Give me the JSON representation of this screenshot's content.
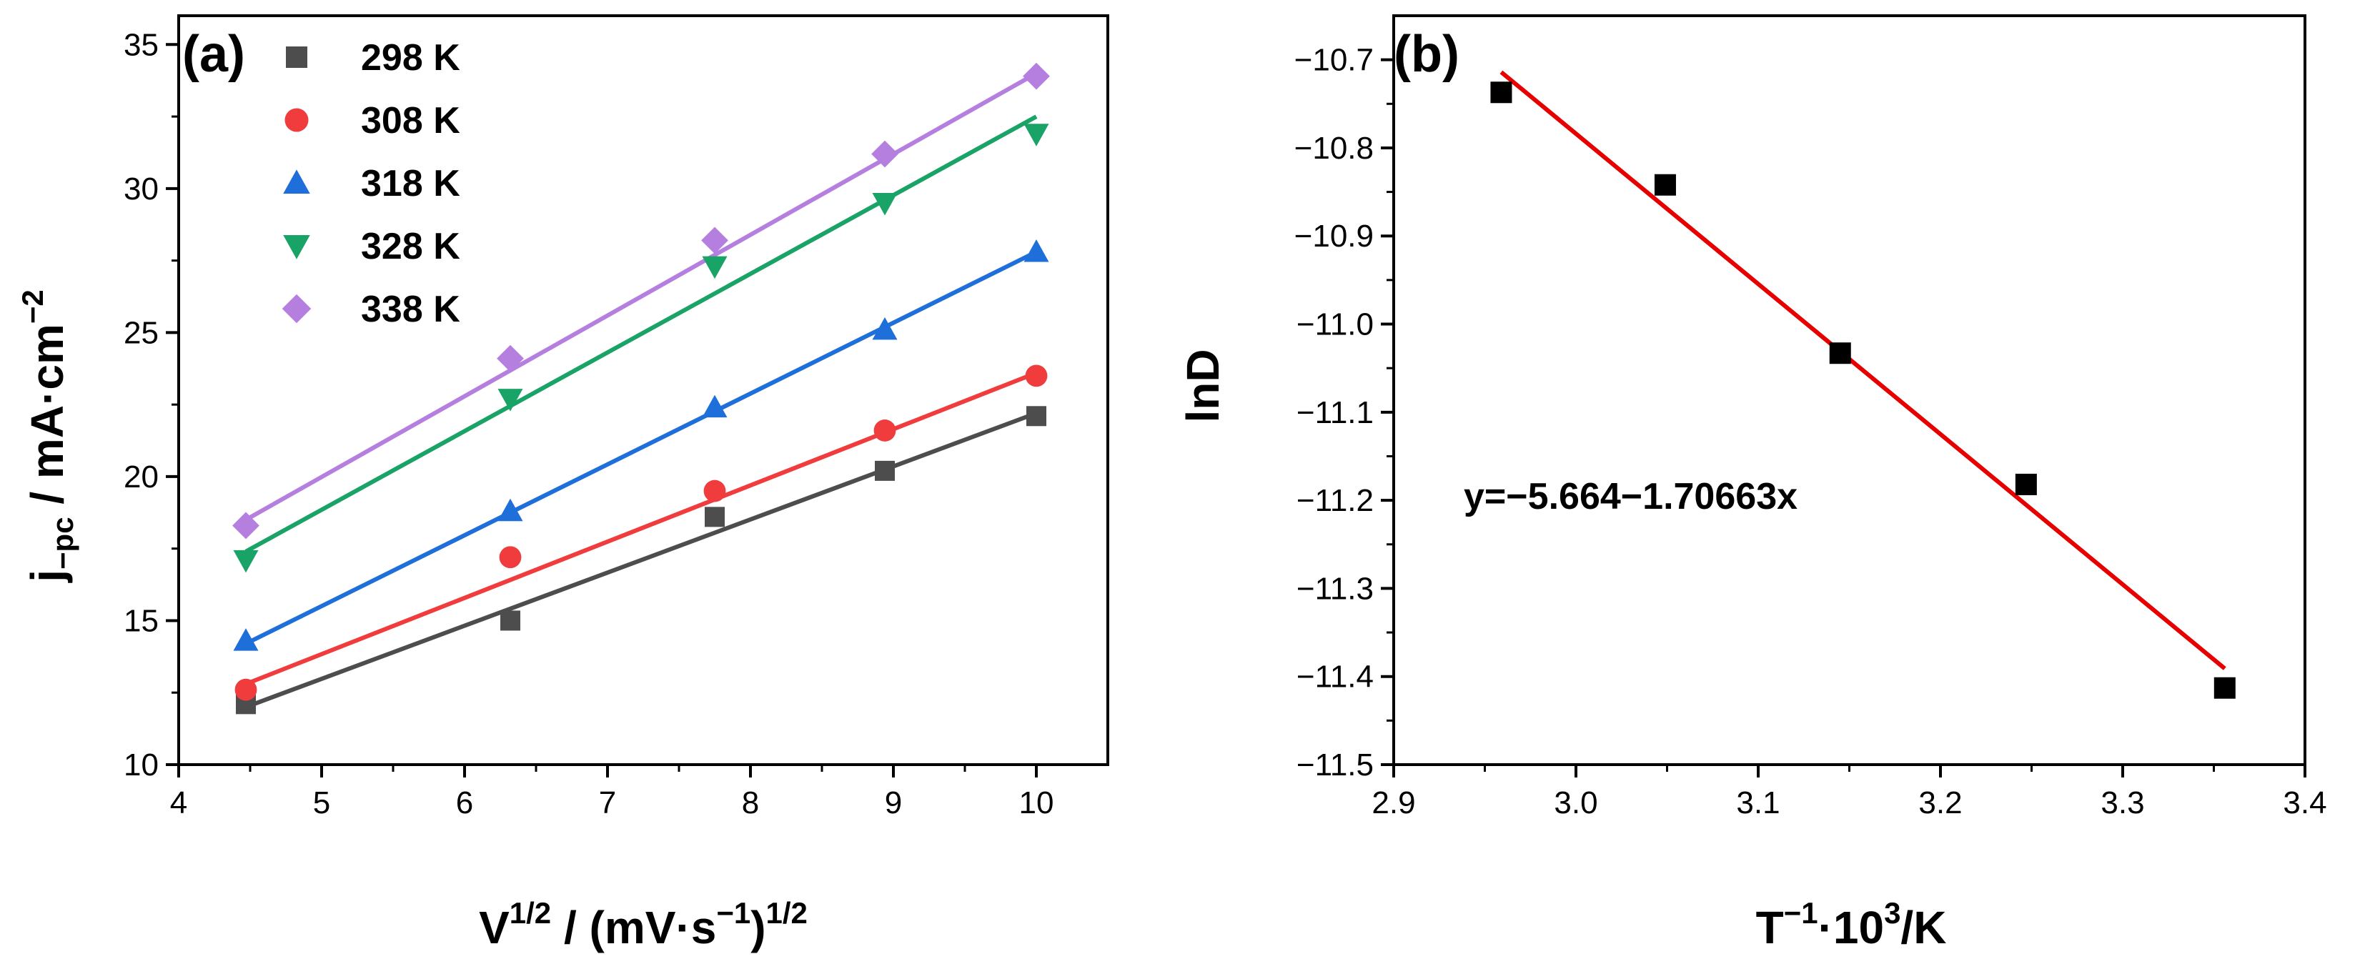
{
  "chart_data": [
    {
      "type": "scatter",
      "panel_label": "(a)",
      "x_label": {
        "base": "V",
        "sup1": "1/2",
        "mid": " / (mV·s",
        "sup2": "−1",
        "end": ")",
        "sup3": "1/2"
      },
      "y_label": {
        "base": "j",
        "sub": "−pc",
        "mid": " / mA·cm",
        "sup": "−2"
      },
      "xlim": [
        4,
        10.5
      ],
      "ylim": [
        10,
        36
      ],
      "x_ticks": [
        "4",
        "5",
        "6",
        "7",
        "8",
        "9",
        "10"
      ],
      "y_ticks": [
        "10",
        "15",
        "20",
        "25",
        "30",
        "35"
      ],
      "x_tick_values": [
        4,
        5,
        6,
        7,
        8,
        9,
        10
      ],
      "y_tick_values": [
        10,
        15,
        20,
        25,
        30,
        35
      ],
      "legend_position": "top-left",
      "x": [
        4.47,
        6.32,
        7.75,
        8.94,
        10.0
      ],
      "series": [
        {
          "name": "298 K",
          "marker": "square",
          "color": "#4d4d4d",
          "values": [
            12.1,
            15.0,
            18.6,
            20.2,
            22.1
          ],
          "fit": [
            12.0,
            22.2
          ]
        },
        {
          "name": "308 K",
          "marker": "circle",
          "color": "#f03c3c",
          "values": [
            12.6,
            17.2,
            19.5,
            21.6,
            23.5
          ],
          "fit": [
            12.8,
            23.6
          ]
        },
        {
          "name": "318 K",
          "marker": "triangle-up",
          "color": "#1f6fdb",
          "values": [
            14.3,
            18.8,
            22.4,
            25.1,
            27.8
          ],
          "fit": [
            14.2,
            27.8
          ]
        },
        {
          "name": "328 K",
          "marker": "triangle-down",
          "color": "#1aa367",
          "values": [
            17.1,
            22.7,
            27.3,
            29.5,
            31.9
          ],
          "fit": [
            17.4,
            32.5
          ]
        },
        {
          "name": "338 K",
          "marker": "diamond",
          "color": "#b57fe0",
          "values": [
            18.3,
            24.1,
            28.2,
            31.2,
            33.9
          ],
          "fit": [
            18.5,
            34.0
          ]
        }
      ]
    },
    {
      "type": "scatter",
      "panel_label": "(b)",
      "x_label": {
        "base": "T",
        "sup1": "−1",
        "mid": "·10",
        "sup2": "3",
        "end": "/K"
      },
      "y_label": "lnD",
      "xlim": [
        2.9,
        3.4
      ],
      "ylim": [
        -11.5,
        -10.65
      ],
      "x_ticks": [
        "2.9",
        "3.0",
        "3.1",
        "3.2",
        "3.3",
        "3.4"
      ],
      "y_ticks": [
        "−10.7",
        "−10.8",
        "−10.9",
        "−11.0",
        "−11.1",
        "−11.2",
        "−11.3",
        "−11.4",
        "−11.5"
      ],
      "x_tick_values": [
        2.9,
        3.0,
        3.1,
        3.2,
        3.3,
        3.4
      ],
      "y_tick_values": [
        -10.7,
        -10.8,
        -10.9,
        -11.0,
        -11.1,
        -11.2,
        -11.3,
        -11.4,
        -11.5
      ],
      "points": {
        "marker": "square",
        "color": "#000000",
        "x": [
          2.959,
          3.049,
          3.145,
          3.247,
          3.356
        ],
        "y": [
          -10.737,
          -10.842,
          -11.033,
          -11.182,
          -11.413
        ]
      },
      "fit_line": {
        "color": "#e60000",
        "x": [
          2.959,
          3.356
        ],
        "y": [
          -10.714,
          -11.391
        ]
      },
      "annotation": "y=−5.664−1.70663x"
    }
  ]
}
